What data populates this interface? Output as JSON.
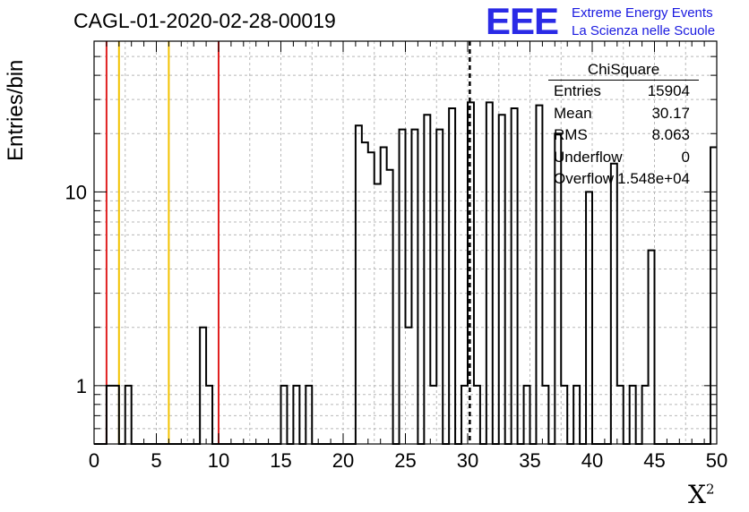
{
  "run_title": "CAGL-01-2020-02-28-00019",
  "logo": {
    "mark": "EEE",
    "line1": "Extreme Energy Events",
    "line2": "La Scienza nelle Scuole"
  },
  "stats": {
    "title": "ChiSquare",
    "rows": [
      {
        "key": "Entries",
        "value": "15904"
      },
      {
        "key": "Mean",
        "value": "30.17"
      },
      {
        "key": "RMS",
        "value": "8.063"
      },
      {
        "key": "Underflow",
        "value": "0"
      },
      {
        "key": "Overflow",
        "value": "1.548e+04"
      }
    ]
  },
  "chart_data": {
    "type": "bar",
    "style": "histogram-step",
    "xlabel": "X",
    "xlabel_superscript": "2",
    "ylabel": "Entries/bin",
    "xlim": [
      0,
      50
    ],
    "ylim": [
      0.5,
      60
    ],
    "y_scale": "log",
    "bin_width": 1,
    "x_ticks": [
      0,
      5,
      10,
      15,
      20,
      25,
      30,
      35,
      40,
      45,
      50
    ],
    "y_ticks": [
      1,
      10
    ],
    "grid": true,
    "bins": [
      {
        "x": 0,
        "y": 0
      },
      {
        "x": 1,
        "y": 1
      },
      {
        "x": 2,
        "y": 0
      },
      {
        "x": 2.5,
        "y": 1
      },
      {
        "x": 3,
        "y": 0
      },
      {
        "x": 8.5,
        "y": 2
      },
      {
        "x": 9,
        "y": 1
      },
      {
        "x": 9.5,
        "y": 0
      },
      {
        "x": 15,
        "y": 1
      },
      {
        "x": 15.5,
        "y": 0
      },
      {
        "x": 16,
        "y": 1
      },
      {
        "x": 16.5,
        "y": 0
      },
      {
        "x": 17,
        "y": 1
      },
      {
        "x": 17.5,
        "y": 0
      },
      {
        "x": 21,
        "y": 22
      },
      {
        "x": 21.5,
        "y": 18
      },
      {
        "x": 22,
        "y": 16
      },
      {
        "x": 22.5,
        "y": 11
      },
      {
        "x": 23,
        "y": 17
      },
      {
        "x": 23.5,
        "y": 13
      },
      {
        "x": 24,
        "y": 0
      },
      {
        "x": 24.5,
        "y": 21
      },
      {
        "x": 25,
        "y": 2
      },
      {
        "x": 25.5,
        "y": 21
      },
      {
        "x": 26,
        "y": 0
      },
      {
        "x": 26.5,
        "y": 25
      },
      {
        "x": 27,
        "y": 1
      },
      {
        "x": 27.5,
        "y": 21
      },
      {
        "x": 28,
        "y": 0
      },
      {
        "x": 28.5,
        "y": 27
      },
      {
        "x": 29,
        "y": 0
      },
      {
        "x": 29.5,
        "y": 1
      },
      {
        "x": 30,
        "y": 29
      },
      {
        "x": 30.5,
        "y": 1
      },
      {
        "x": 31,
        "y": 0
      },
      {
        "x": 31.5,
        "y": 29
      },
      {
        "x": 32,
        "y": 0
      },
      {
        "x": 32.5,
        "y": 25
      },
      {
        "x": 33,
        "y": 0
      },
      {
        "x": 33.5,
        "y": 27
      },
      {
        "x": 34,
        "y": 0
      },
      {
        "x": 34.5,
        "y": 1
      },
      {
        "x": 35,
        "y": 0
      },
      {
        "x": 35.5,
        "y": 28
      },
      {
        "x": 36,
        "y": 1
      },
      {
        "x": 36.5,
        "y": 0
      },
      {
        "x": 37,
        "y": 20
      },
      {
        "x": 37.5,
        "y": 1
      },
      {
        "x": 38,
        "y": 0
      },
      {
        "x": 38.5,
        "y": 1
      },
      {
        "x": 39,
        "y": 0
      },
      {
        "x": 39.5,
        "y": 10
      },
      {
        "x": 40,
        "y": 0
      },
      {
        "x": 41.5,
        "y": 14
      },
      {
        "x": 42,
        "y": 1
      },
      {
        "x": 42.5,
        "y": 0
      },
      {
        "x": 43,
        "y": 1
      },
      {
        "x": 43.5,
        "y": 0
      },
      {
        "x": 44,
        "y": 1
      },
      {
        "x": 44.5,
        "y": 5
      },
      {
        "x": 45,
        "y": 0
      },
      {
        "x": 49.5,
        "y": 17
      }
    ],
    "reference_lines": [
      {
        "x": 1,
        "color": "#e02020",
        "style": "solid"
      },
      {
        "x": 2,
        "color": "#f2c200",
        "style": "solid"
      },
      {
        "x": 6,
        "color": "#f2c200",
        "style": "solid"
      },
      {
        "x": 10,
        "color": "#e02020",
        "style": "solid"
      },
      {
        "x": 30.17,
        "color": "#000000",
        "style": "dashed"
      }
    ]
  }
}
